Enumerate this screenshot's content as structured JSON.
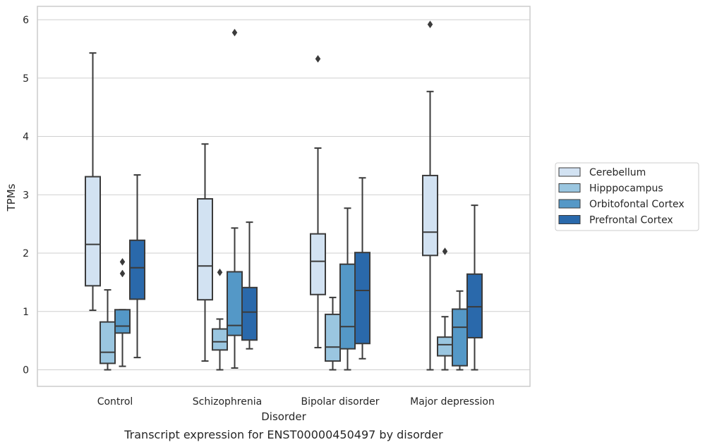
{
  "caption": "Transcript expression for ENST00000450497 by disorder",
  "chart_data": {
    "type": "box",
    "xlabel": "Disorder",
    "ylabel": "TPMs",
    "ylim": [
      -0.3,
      6.2
    ],
    "yticks": [
      0,
      1,
      2,
      3,
      4,
      5,
      6
    ],
    "grid": "horizontal",
    "legend_placement": "right",
    "categories": [
      "Control",
      "Schizophrenia",
      "Bipolar disorder",
      "Major depression"
    ],
    "series": [
      {
        "name": "Cerebellum",
        "color": "#d2e2f2",
        "boxes": [
          {
            "whislo": 1.02,
            "q1": 1.44,
            "med": 2.15,
            "q3": 3.31,
            "whishi": 5.43,
            "fliers": []
          },
          {
            "whislo": 0.15,
            "q1": 1.2,
            "med": 1.78,
            "q3": 2.93,
            "whishi": 3.87,
            "fliers": []
          },
          {
            "whislo": 0.38,
            "q1": 1.29,
            "med": 1.86,
            "q3": 2.33,
            "whishi": 3.8,
            "fliers": [
              5.33
            ]
          },
          {
            "whislo": 0.0,
            "q1": 1.96,
            "med": 2.36,
            "q3": 3.33,
            "whishi": 4.77,
            "fliers": [
              5.92
            ]
          }
        ]
      },
      {
        "name": "Hipppocampus",
        "color": "#9ac6e0",
        "boxes": [
          {
            "whislo": 0.0,
            "q1": 0.11,
            "med": 0.3,
            "q3": 0.82,
            "whishi": 1.37,
            "fliers": []
          },
          {
            "whislo": 0.0,
            "q1": 0.34,
            "med": 0.48,
            "q3": 0.7,
            "whishi": 0.87,
            "fliers": [
              1.67
            ]
          },
          {
            "whislo": 0.0,
            "q1": 0.15,
            "med": 0.39,
            "q3": 0.95,
            "whishi": 1.24,
            "fliers": []
          },
          {
            "whislo": 0.0,
            "q1": 0.24,
            "med": 0.43,
            "q3": 0.56,
            "whishi": 0.91,
            "fliers": [
              2.03
            ]
          }
        ]
      },
      {
        "name": "Orbitofontal Cortex",
        "color": "#5498c7",
        "boxes": [
          {
            "whislo": 0.06,
            "q1": 0.63,
            "med": 0.75,
            "q3": 1.03,
            "whishi": 1.03,
            "fliers": [
              1.65,
              1.85
            ]
          },
          {
            "whislo": 0.03,
            "q1": 0.59,
            "med": 0.76,
            "q3": 1.68,
            "whishi": 2.43,
            "fliers": [
              5.78
            ]
          },
          {
            "whislo": 0.0,
            "q1": 0.36,
            "med": 0.74,
            "q3": 1.81,
            "whishi": 2.77,
            "fliers": []
          },
          {
            "whislo": 0.0,
            "q1": 0.07,
            "med": 0.73,
            "q3": 1.04,
            "whishi": 1.35,
            "fliers": []
          }
        ]
      },
      {
        "name": "Prefrontal Cortex",
        "color": "#2a69ab",
        "boxes": [
          {
            "whislo": 0.21,
            "q1": 1.21,
            "med": 1.75,
            "q3": 2.22,
            "whishi": 3.34,
            "fliers": []
          },
          {
            "whislo": 0.36,
            "q1": 0.51,
            "med": 0.99,
            "q3": 1.41,
            "whishi": 2.53,
            "fliers": []
          },
          {
            "whislo": 0.19,
            "q1": 0.45,
            "med": 1.36,
            "q3": 2.01,
            "whishi": 3.29,
            "fliers": []
          },
          {
            "whislo": 0.0,
            "q1": 0.55,
            "med": 1.08,
            "q3": 1.64,
            "whishi": 2.82,
            "fliers": []
          }
        ]
      }
    ]
  }
}
